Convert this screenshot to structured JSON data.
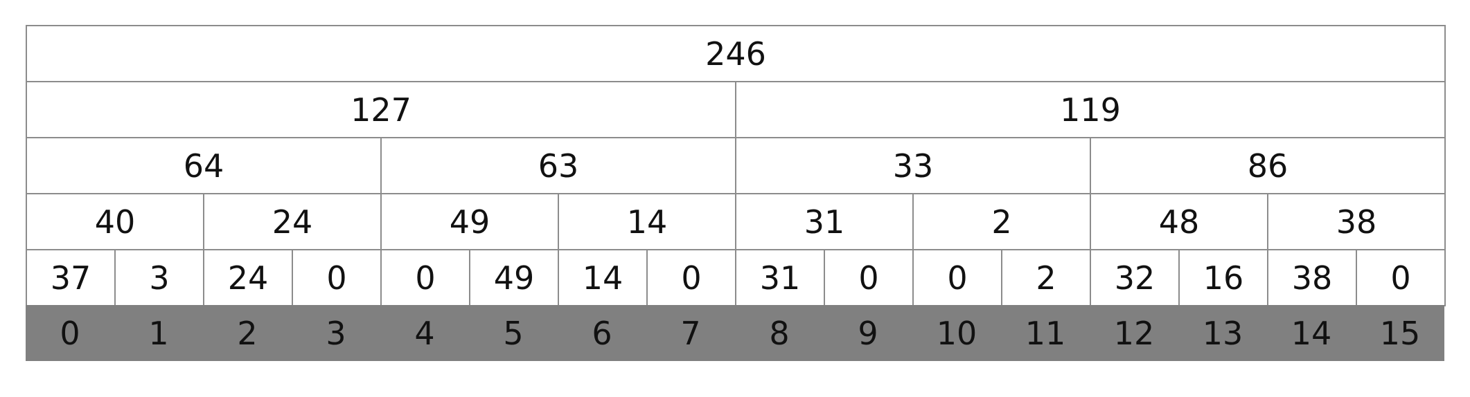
{
  "levels": [
    [
      "246"
    ],
    [
      "127",
      "119"
    ],
    [
      "64",
      "63",
      "33",
      "86"
    ],
    [
      "40",
      "24",
      "49",
      "14",
      "31",
      "2",
      "48",
      "38"
    ],
    [
      "37",
      "3",
      "24",
      "0",
      "0",
      "49",
      "14",
      "0",
      "31",
      "0",
      "0",
      "2",
      "32",
      "16",
      "38",
      "0"
    ]
  ],
  "indices": [
    "0",
    "1",
    "2",
    "3",
    "4",
    "5",
    "6",
    "7",
    "8",
    "9",
    "10",
    "11",
    "12",
    "13",
    "14",
    "15"
  ],
  "colors": {
    "grid": "#8c8c8c",
    "index_band": "#808080",
    "text": "#111111"
  }
}
